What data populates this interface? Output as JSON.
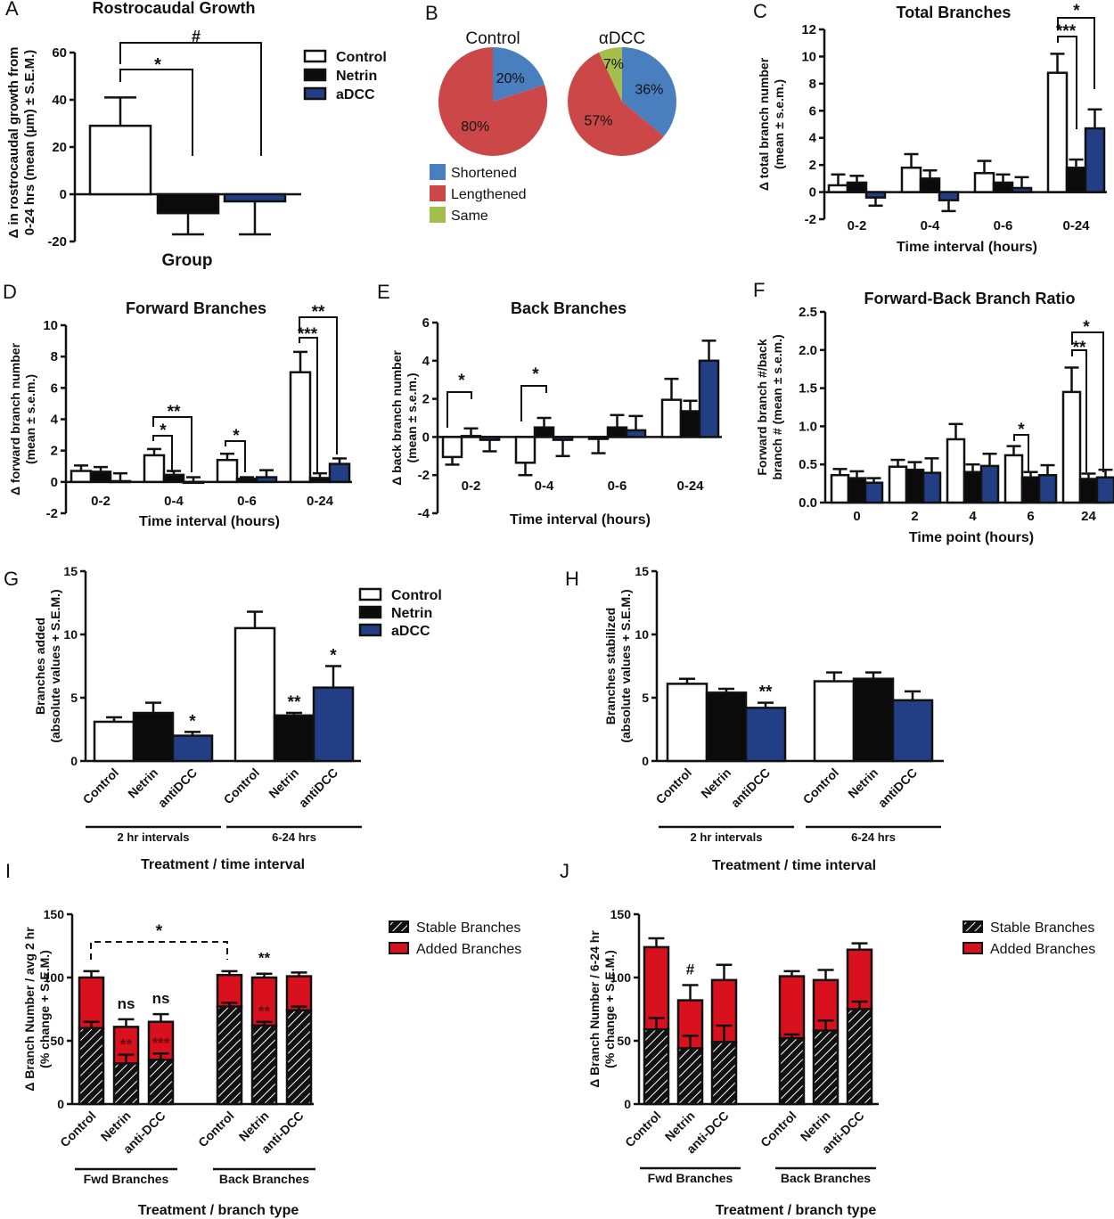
{
  "colors": {
    "control": "#ffffff",
    "netrin": "#0b0b0b",
    "adcc": "#223f86",
    "axis": "#111111",
    "pie_shortened": "#4a7fbf",
    "pie_lengthened": "#cc4747",
    "pie_same": "#a3be4d",
    "added_red": "#d9101e"
  },
  "chart_data": [
    {
      "panel": "A",
      "type": "bar",
      "title": "Rostrocaudal Growth",
      "xlabel": "Group",
      "ylabel": "Δ in rostrocaudal growth from 0-24 hrs (mean (µm) ± S.E.M.)",
      "ylim": [
        -20,
        60
      ],
      "yticks": [
        -20,
        0,
        20,
        40,
        60
      ],
      "series": [
        {
          "name": "Control",
          "value": 29,
          "err": 12
        },
        {
          "name": "Netrin",
          "value": -8,
          "err": -9
        },
        {
          "name": "aDCC",
          "value": -3,
          "err": -14
        }
      ],
      "legend": [
        "Control",
        "Netrin",
        "aDCC"
      ],
      "legend_position": "top-right",
      "annotations": [
        {
          "text": "*",
          "from": "Control",
          "to": "Netrin"
        },
        {
          "text": "#",
          "from": "Control",
          "to": "aDCC"
        }
      ]
    },
    {
      "panel": "B",
      "type": "pie",
      "pies": [
        {
          "title": "Control",
          "slices": [
            {
              "label": "Shortened",
              "value": 20
            },
            {
              "label": "Lengthened",
              "value": 80
            }
          ]
        },
        {
          "title": "αDCC",
          "slices": [
            {
              "label": "Shortened",
              "value": 36
            },
            {
              "label": "Lengthened",
              "value": 57
            },
            {
              "label": "Same",
              "value": 7
            }
          ]
        }
      ],
      "legend": [
        "Shortened",
        "Lengthened",
        "Same"
      ],
      "legend_position": "bottom-left"
    },
    {
      "panel": "C",
      "type": "bar",
      "title": "Total Branches",
      "xlabel": "Time interval (hours)",
      "ylabel": "Δ total branch number (mean ± s.e.m.)",
      "ylim": [
        -2,
        12
      ],
      "yticks": [
        -2,
        0,
        2,
        4,
        6,
        8,
        10,
        12
      ],
      "categories": [
        "0-2",
        "0-4",
        "0-6",
        "0-24"
      ],
      "series": [
        {
          "name": "Control",
          "values": [
            0.5,
            1.8,
            1.4,
            8.8
          ],
          "errors": [
            0.8,
            1.0,
            0.9,
            1.4
          ]
        },
        {
          "name": "Netrin",
          "values": [
            0.7,
            1.0,
            0.7,
            1.8
          ],
          "errors": [
            0.5,
            0.6,
            0.6,
            0.6
          ]
        },
        {
          "name": "aDCC",
          "values": [
            -0.4,
            -0.6,
            0.3,
            4.7
          ],
          "errors": [
            -0.6,
            -0.8,
            0.8,
            1.4
          ]
        }
      ],
      "annotations": [
        {
          "category": "0-24",
          "text": "***",
          "from": "Control",
          "to": "Netrin"
        },
        {
          "category": "0-24",
          "text": "*",
          "from": "Control",
          "to": "aDCC"
        }
      ]
    },
    {
      "panel": "D",
      "type": "bar",
      "title": "Forward Branches",
      "xlabel": "Time interval (hours)",
      "ylabel": "Δ forward branch number (mean ± s.e.m.)",
      "ylim": [
        -2,
        10
      ],
      "yticks": [
        -2,
        0,
        2,
        4,
        6,
        8,
        10
      ],
      "categories": [
        "0-2",
        "0-4",
        "0-6",
        "0-24"
      ],
      "series": [
        {
          "name": "Control",
          "values": [
            0.7,
            1.7,
            1.4,
            7.0
          ],
          "errors": [
            0.35,
            0.4,
            0.4,
            1.3
          ]
        },
        {
          "name": "Netrin",
          "values": [
            0.65,
            0.45,
            0.2,
            0.25
          ],
          "errors": [
            0.3,
            0.25,
            0.1,
            0.3
          ]
        },
        {
          "name": "aDCC",
          "values": [
            0.05,
            0.0,
            0.3,
            1.15
          ],
          "errors": [
            0.5,
            0.3,
            0.45,
            0.35
          ]
        }
      ],
      "annotations": [
        {
          "category": "0-4",
          "text": "*",
          "from": "Control",
          "to": "Netrin"
        },
        {
          "category": "0-4",
          "text": "**",
          "from": "Control",
          "to": "aDCC"
        },
        {
          "category": "0-6",
          "text": "*",
          "from": "Control",
          "to": "Netrin"
        },
        {
          "category": "0-24",
          "text": "***",
          "from": "Control",
          "to": "Netrin"
        },
        {
          "category": "0-24",
          "text": "**",
          "from": "Control",
          "to": "aDCC"
        }
      ]
    },
    {
      "panel": "E",
      "type": "bar",
      "title": "Back Branches",
      "xlabel": "Time interval (hours)",
      "ylabel": "Δ back branch number (mean ± s.e.m.)",
      "ylim": [
        -4,
        6
      ],
      "yticks": [
        -4,
        -2,
        0,
        2,
        4,
        6
      ],
      "categories": [
        "0-2",
        "0-4",
        "0-6",
        "0-24"
      ],
      "series": [
        {
          "name": "Control",
          "values": [
            -1.05,
            -1.35,
            -0.1,
            1.95
          ],
          "errors": [
            -0.4,
            -0.65,
            -0.75,
            1.1
          ]
        },
        {
          "name": "Netrin",
          "values": [
            0.05,
            0.5,
            0.5,
            1.35
          ],
          "errors": [
            0.4,
            0.5,
            0.65,
            0.55
          ]
        },
        {
          "name": "aDCC",
          "values": [
            -0.15,
            -0.15,
            0.35,
            4.0
          ],
          "errors": [
            -0.6,
            -0.85,
            0.75,
            1.05
          ]
        }
      ],
      "annotations": [
        {
          "category": "0-2",
          "text": "*",
          "from": "Control",
          "to": "Netrin"
        },
        {
          "category": "0-4",
          "text": "*",
          "from": "Control",
          "to": "Netrin"
        }
      ]
    },
    {
      "panel": "F",
      "type": "bar",
      "title": "Forward-Back Branch Ratio",
      "xlabel": "Time point (hours)",
      "ylabel": "Forward branch #/back branch # (mean ± s.e.m.)",
      "ylim": [
        0,
        2.5
      ],
      "yticks": [
        "0.0",
        "0.5",
        "1.0",
        "1.5",
        "2.0",
        "2.5"
      ],
      "categories": [
        "0",
        "2",
        "4",
        "6",
        "24"
      ],
      "series": [
        {
          "name": "Control",
          "values": [
            0.36,
            0.47,
            0.83,
            0.62,
            1.45
          ],
          "errors": [
            0.08,
            0.09,
            0.2,
            0.12,
            0.32
          ]
        },
        {
          "name": "Netrin",
          "values": [
            0.32,
            0.43,
            0.4,
            0.33,
            0.31
          ],
          "errors": [
            0.09,
            0.1,
            0.1,
            0.07,
            0.07
          ]
        },
        {
          "name": "aDCC",
          "values": [
            0.26,
            0.39,
            0.48,
            0.36,
            0.33
          ],
          "errors": [
            0.06,
            0.19,
            0.16,
            0.13,
            0.1
          ]
        }
      ],
      "annotations": [
        {
          "category": "6",
          "text": "*",
          "from": "Control",
          "to": "Netrin"
        },
        {
          "category": "24",
          "text": "**",
          "from": "Control",
          "to": "Netrin"
        },
        {
          "category": "24",
          "text": "*",
          "from": "Control",
          "to": "aDCC"
        }
      ]
    },
    {
      "panel": "G",
      "type": "bar",
      "xlabel": "Treatment / time interval",
      "ylabel": "Branches added (absolute values + S.E.M.)",
      "ylim": [
        0,
        15
      ],
      "yticks": [
        0,
        5,
        10,
        15
      ],
      "groups": [
        {
          "label": "2 hr intervals",
          "bars": [
            {
              "label": "Control",
              "series": "Control",
              "value": 3.1,
              "err": 0.35,
              "sig": ""
            },
            {
              "label": "Netrin",
              "series": "Netrin",
              "value": 3.8,
              "err": 0.8,
              "sig": ""
            },
            {
              "label": "antiDCC",
              "series": "aDCC",
              "value": 2.0,
              "err": 0.3,
              "sig": "*"
            }
          ]
        },
        {
          "label": "6-24 hrs",
          "bars": [
            {
              "label": "Control",
              "series": "Control",
              "value": 10.5,
              "err": 1.3,
              "sig": ""
            },
            {
              "label": "Netrin",
              "series": "Netrin",
              "value": 3.6,
              "err": 0.2,
              "sig": "**"
            },
            {
              "label": "antiDCC",
              "series": "aDCC",
              "value": 5.8,
              "err": 1.7,
              "sig": "*"
            }
          ]
        }
      ],
      "legend": [
        "Control",
        "Netrin",
        "aDCC"
      ],
      "legend_position": "top-right"
    },
    {
      "panel": "H",
      "type": "bar",
      "xlabel": "Treatment / time interval",
      "ylabel": "Branches stabilized (absolute values + S.E.M.)",
      "ylim": [
        0,
        15
      ],
      "yticks": [
        0,
        5,
        10,
        15
      ],
      "groups": [
        {
          "label": "2 hr intervals",
          "bars": [
            {
              "label": "Control",
              "series": "Control",
              "value": 6.1,
              "err": 0.4,
              "sig": ""
            },
            {
              "label": "Netrin",
              "series": "Netrin",
              "value": 5.4,
              "err": 0.3,
              "sig": ""
            },
            {
              "label": "antiDCC",
              "series": "aDCC",
              "value": 4.2,
              "err": 0.4,
              "sig": "**"
            }
          ]
        },
        {
          "label": "6-24 hrs",
          "bars": [
            {
              "label": "Control",
              "series": "Control",
              "value": 6.3,
              "err": 0.7,
              "sig": ""
            },
            {
              "label": "Netrin",
              "series": "Netrin",
              "value": 6.5,
              "err": 0.5,
              "sig": ""
            },
            {
              "label": "antiDCC",
              "series": "aDCC",
              "value": 4.8,
              "err": 0.7,
              "sig": ""
            }
          ]
        }
      ]
    },
    {
      "panel": "I",
      "type": "bar",
      "stacked": true,
      "xlabel": "Treatment / branch type",
      "ylabel": "Δ Branch Number / avg 2 hr (% change + S.E.M.)",
      "ylim": [
        0,
        150
      ],
      "yticks": [
        0,
        50,
        100,
        150
      ],
      "legend": [
        "Stable Branches",
        "Added Branches"
      ],
      "legend_position": "top-right",
      "groups": [
        {
          "label": "Fwd Branches",
          "bars": [
            {
              "label": "Control",
              "stable": 60,
              "stable_err": 5,
              "total": 100,
              "total_err": 5,
              "sig_top": "",
              "sig_inner": ""
            },
            {
              "label": "Netrin",
              "stable": 32,
              "stable_err": 7,
              "total": 61,
              "total_err": 6,
              "sig_top": "ns",
              "sig_inner": "**"
            },
            {
              "label": "anti-DCC",
              "stable": 35,
              "stable_err": 5,
              "total": 65,
              "total_err": 6,
              "sig_top": "ns",
              "sig_inner": "***"
            }
          ]
        },
        {
          "label": "Back Branches",
          "bars": [
            {
              "label": "Control",
              "stable": 77,
              "stable_err": 3,
              "total": 102,
              "total_err": 3,
              "sig_top": "",
              "sig_inner": ""
            },
            {
              "label": "Netrin",
              "stable": 62,
              "stable_err": 3,
              "total": 100,
              "total_err": 3,
              "sig_top": "**",
              "sig_inner": "**"
            },
            {
              "label": "anti-DCC",
              "stable": 74,
              "stable_err": 3,
              "total": 101,
              "total_err": 3,
              "sig_top": "",
              "sig_inner": ""
            }
          ]
        }
      ],
      "annotations": [
        {
          "text": "*",
          "from": "Fwd Control",
          "to": "Back Control",
          "style": "dashed"
        }
      ]
    },
    {
      "panel": "J",
      "type": "bar",
      "stacked": true,
      "xlabel": "Treatment / branch type",
      "ylabel": "Δ Branch Number / 6-24 hr (% change + S.E.M.)",
      "ylim": [
        0,
        150
      ],
      "yticks": [
        0,
        50,
        100,
        150
      ],
      "legend": [
        "Stable Branches",
        "Added Branches"
      ],
      "legend_position": "top-right",
      "groups": [
        {
          "label": "Fwd Branches",
          "bars": [
            {
              "label": "Control",
              "stable": 59,
              "stable_err": 9,
              "total": 124,
              "total_err": 7,
              "sig_top": ""
            },
            {
              "label": "Netrin",
              "stable": 44,
              "stable_err": 10,
              "total": 82,
              "total_err": 12,
              "sig_top": "#"
            },
            {
              "label": "anti-DCC",
              "stable": 49,
              "stable_err": 13,
              "total": 98,
              "total_err": 12,
              "sig_top": ""
            }
          ]
        },
        {
          "label": "Back Branches",
          "bars": [
            {
              "label": "Control",
              "stable": 52,
              "stable_err": 3,
              "total": 101,
              "total_err": 4,
              "sig_top": ""
            },
            {
              "label": "Netrin",
              "stable": 58,
              "stable_err": 8,
              "total": 98,
              "total_err": 8,
              "sig_top": ""
            },
            {
              "label": "anti-DCC",
              "stable": 75,
              "stable_err": 6,
              "total": 122,
              "total_err": 5,
              "sig_top": ""
            }
          ]
        }
      ]
    }
  ]
}
